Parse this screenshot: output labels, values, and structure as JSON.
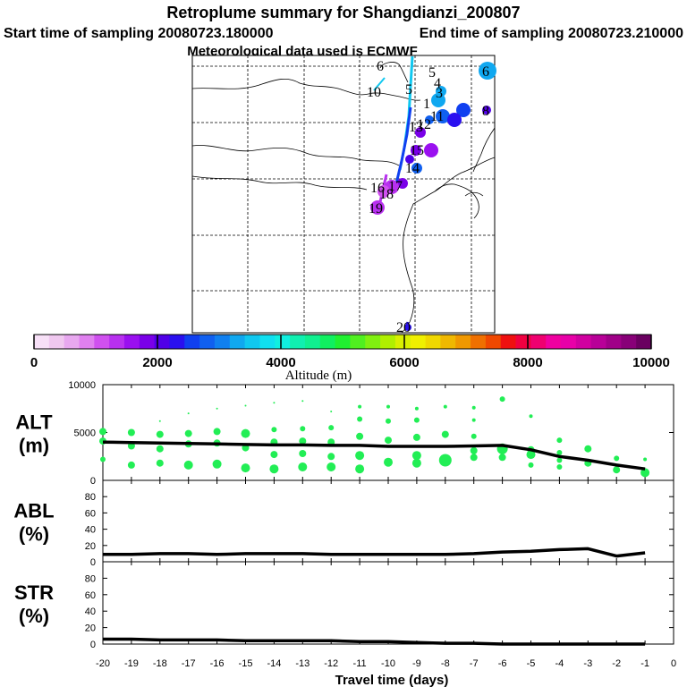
{
  "header": {
    "title": "Retroplume summary for Shangdianzi_200807",
    "start_time": "Start time of sampling 20080723.180000",
    "end_time": "End time of sampling 20080723.210000",
    "met_data": "Meteorological data used is ECMWF"
  },
  "map": {
    "day_labels": [
      "6",
      "5",
      "6",
      "4",
      "3",
      "5",
      "10",
      "1",
      "8",
      "11",
      "13",
      "12",
      "15",
      "14",
      "16",
      "17",
      "18",
      "19",
      "20"
    ]
  },
  "colorbar": {
    "title": "Altitude (m)",
    "tick_labels": [
      "0",
      "2000",
      "4000",
      "6000",
      "8000",
      "10000"
    ],
    "colors": [
      "#f7e0f7",
      "#f0c8f0",
      "#e8a8f0",
      "#e080f0",
      "#d050f0",
      "#b830f0",
      "#9a10f0",
      "#7a00e8",
      "#5000e8",
      "#2a10f0",
      "#1040f0",
      "#1060f0",
      "#1080f0",
      "#10a8f0",
      "#10c8f0",
      "#10e0f0",
      "#10f0e0",
      "#10f0b0",
      "#10f090",
      "#10f060",
      "#20f030",
      "#50f020",
      "#80f010",
      "#b0f000",
      "#d8f000",
      "#f0f000",
      "#f0d800",
      "#f0b800",
      "#f09800",
      "#f07000",
      "#f04800",
      "#f01010",
      "#f00040",
      "#f00070",
      "#f000a0",
      "#e800a8",
      "#d000a0",
      "#b80098",
      "#a00088",
      "#880078",
      "#6a0060"
    ]
  },
  "chart_data": [
    {
      "type": "line",
      "name": "ALT",
      "panel_label": [
        "ALT",
        "(m)"
      ],
      "xlim": [
        -20,
        0
      ],
      "ylim": [
        0,
        10000
      ],
      "ytick_labels": [
        "10000",
        "5000",
        "0"
      ],
      "ytick_values": [
        10000,
        5000,
        0
      ],
      "series": [
        {
          "name": "plume mean altitude",
          "x": [
            -20,
            -19,
            -18,
            -17,
            -16,
            -15,
            -14,
            -13,
            -12,
            -11,
            -10,
            -9,
            -8,
            -7,
            -6,
            -5,
            -4,
            -3,
            -2,
            -1
          ],
          "y": [
            4000,
            3950,
            3900,
            3850,
            3800,
            3750,
            3700,
            3700,
            3650,
            3650,
            3550,
            3550,
            3550,
            3600,
            3650,
            3200,
            2500,
            2100,
            1600,
            1200
          ]
        }
      ],
      "scatter_points": [
        {
          "x": -20,
          "y": 5100,
          "s": 4
        },
        {
          "x": -20,
          "y": 4100,
          "s": 4
        },
        {
          "x": -20,
          "y": 2200,
          "s": 3
        },
        {
          "x": -19,
          "y": 5000,
          "s": 4
        },
        {
          "x": -19,
          "y": 3600,
          "s": 4
        },
        {
          "x": -19,
          "y": 1600,
          "s": 4
        },
        {
          "x": -18,
          "y": 6200,
          "s": 1
        },
        {
          "x": -18,
          "y": 4800,
          "s": 4
        },
        {
          "x": -18,
          "y": 3300,
          "s": 4
        },
        {
          "x": -18,
          "y": 1800,
          "s": 4
        },
        {
          "x": -17,
          "y": 7000,
          "s": 1
        },
        {
          "x": -17,
          "y": 4900,
          "s": 4
        },
        {
          "x": -17,
          "y": 3800,
          "s": 4
        },
        {
          "x": -17,
          "y": 1600,
          "s": 5
        },
        {
          "x": -16,
          "y": 7500,
          "s": 1
        },
        {
          "x": -16,
          "y": 5100,
          "s": 4
        },
        {
          "x": -16,
          "y": 3900,
          "s": 4
        },
        {
          "x": -16,
          "y": 1700,
          "s": 5
        },
        {
          "x": -15,
          "y": 7800,
          "s": 1
        },
        {
          "x": -15,
          "y": 4900,
          "s": 5
        },
        {
          "x": -15,
          "y": 3400,
          "s": 4
        },
        {
          "x": -15,
          "y": 1300,
          "s": 5
        },
        {
          "x": -14,
          "y": 8100,
          "s": 1
        },
        {
          "x": -14,
          "y": 5300,
          "s": 3
        },
        {
          "x": -14,
          "y": 4000,
          "s": 4
        },
        {
          "x": -14,
          "y": 2700,
          "s": 4
        },
        {
          "x": -14,
          "y": 1200,
          "s": 5
        },
        {
          "x": -13,
          "y": 8300,
          "s": 1
        },
        {
          "x": -13,
          "y": 5400,
          "s": 3
        },
        {
          "x": -13,
          "y": 4100,
          "s": 4
        },
        {
          "x": -13,
          "y": 2800,
          "s": 4
        },
        {
          "x": -13,
          "y": 1400,
          "s": 5
        },
        {
          "x": -12,
          "y": 7200,
          "s": 1
        },
        {
          "x": -12,
          "y": 5500,
          "s": 3
        },
        {
          "x": -12,
          "y": 4000,
          "s": 4
        },
        {
          "x": -12,
          "y": 2500,
          "s": 4
        },
        {
          "x": -12,
          "y": 1400,
          "s": 5
        },
        {
          "x": -11,
          "y": 7700,
          "s": 2
        },
        {
          "x": -11,
          "y": 6400,
          "s": 3
        },
        {
          "x": -11,
          "y": 4600,
          "s": 4
        },
        {
          "x": -11,
          "y": 2600,
          "s": 5
        },
        {
          "x": -11,
          "y": 1200,
          "s": 5
        },
        {
          "x": -10,
          "y": 7700,
          "s": 2
        },
        {
          "x": -10,
          "y": 6200,
          "s": 3
        },
        {
          "x": -10,
          "y": 4200,
          "s": 4
        },
        {
          "x": -10,
          "y": 1900,
          "s": 5
        },
        {
          "x": -9,
          "y": 7500,
          "s": 2
        },
        {
          "x": -9,
          "y": 6300,
          "s": 3
        },
        {
          "x": -9,
          "y": 4500,
          "s": 4
        },
        {
          "x": -9,
          "y": 2600,
          "s": 5
        },
        {
          "x": -9,
          "y": 1800,
          "s": 5
        },
        {
          "x": -8,
          "y": 7700,
          "s": 2
        },
        {
          "x": -8,
          "y": 4800,
          "s": 4
        },
        {
          "x": -8,
          "y": 2100,
          "s": 7
        },
        {
          "x": -7,
          "y": 7600,
          "s": 2
        },
        {
          "x": -7,
          "y": 6300,
          "s": 2
        },
        {
          "x": -7,
          "y": 4600,
          "s": 3
        },
        {
          "x": -7,
          "y": 3100,
          "s": 4
        },
        {
          "x": -7,
          "y": 2400,
          "s": 4
        },
        {
          "x": -6,
          "y": 8500,
          "s": 3
        },
        {
          "x": -6,
          "y": 3300,
          "s": 6
        },
        {
          "x": -6,
          "y": 2400,
          "s": 4
        },
        {
          "x": -5,
          "y": 6700,
          "s": 2
        },
        {
          "x": -5,
          "y": 3200,
          "s": 4
        },
        {
          "x": -5,
          "y": 2700,
          "s": 5
        },
        {
          "x": -5,
          "y": 1600,
          "s": 3
        },
        {
          "x": -4,
          "y": 4200,
          "s": 3
        },
        {
          "x": -4,
          "y": 2900,
          "s": 3
        },
        {
          "x": -4,
          "y": 2100,
          "s": 3
        },
        {
          "x": -4,
          "y": 1400,
          "s": 3
        },
        {
          "x": -3,
          "y": 3300,
          "s": 4
        },
        {
          "x": -3,
          "y": 1800,
          "s": 4
        },
        {
          "x": -2,
          "y": 2300,
          "s": 3
        },
        {
          "x": -2,
          "y": 1100,
          "s": 4
        },
        {
          "x": -1,
          "y": 2200,
          "s": 2
        },
        {
          "x": -1,
          "y": 800,
          "s": 5
        }
      ],
      "point_color": "#22ee55"
    },
    {
      "type": "line",
      "name": "ABL",
      "panel_label": [
        "ABL",
        "(%)"
      ],
      "xlim": [
        -20,
        0
      ],
      "ylim": [
        0,
        100
      ],
      "ytick_labels": [
        "80",
        "60",
        "40",
        "20",
        "0"
      ],
      "ytick_values": [
        80,
        60,
        40,
        20,
        0
      ],
      "series": [
        {
          "name": "fraction in ABL",
          "x": [
            -20,
            -19,
            -18,
            -17,
            -16,
            -15,
            -14,
            -13,
            -12,
            -11,
            -10,
            -9,
            -8,
            -7,
            -6,
            -5,
            -4,
            -3,
            -2,
            -1
          ],
          "y": [
            9,
            9,
            10,
            10,
            9,
            10,
            10,
            10,
            9,
            9,
            9,
            9,
            9,
            10,
            12,
            13,
            15,
            16,
            7,
            11
          ]
        }
      ]
    },
    {
      "type": "line",
      "name": "STR",
      "panel_label": [
        "STR",
        "(%)"
      ],
      "xlim": [
        -20,
        0
      ],
      "ylim": [
        0,
        100
      ],
      "ytick_labels": [
        "80",
        "60",
        "40",
        "20",
        "0"
      ],
      "ytick_values": [
        80,
        60,
        40,
        20,
        0
      ],
      "xtick_labels": [
        "-20",
        "-19",
        "-18",
        "-17",
        "-16",
        "-15",
        "-14",
        "-13",
        "-12",
        "-11",
        "-10",
        "-9",
        "-8",
        "-7",
        "-6",
        "-5",
        "-4",
        "-3",
        "-2",
        "-1",
        "0"
      ],
      "xtick_values": [
        -20,
        -19,
        -18,
        -17,
        -16,
        -15,
        -14,
        -13,
        -12,
        -11,
        -10,
        -9,
        -8,
        -7,
        -6,
        -5,
        -4,
        -3,
        -2,
        -1,
        0
      ],
      "xlabel": "Travel time (days)",
      "series": [
        {
          "name": "fraction in stratosphere",
          "x": [
            -20,
            -19,
            -18,
            -17,
            -16,
            -15,
            -14,
            -13,
            -12,
            -11,
            -10,
            -9,
            -8,
            -7,
            -6,
            -5,
            -4,
            -3,
            -2,
            -1
          ],
          "y": [
            6,
            6,
            5,
            5,
            5,
            4,
            4,
            4,
            4,
            3,
            3,
            2,
            1,
            1,
            0,
            0,
            0,
            0,
            0,
            0
          ]
        }
      ]
    }
  ]
}
